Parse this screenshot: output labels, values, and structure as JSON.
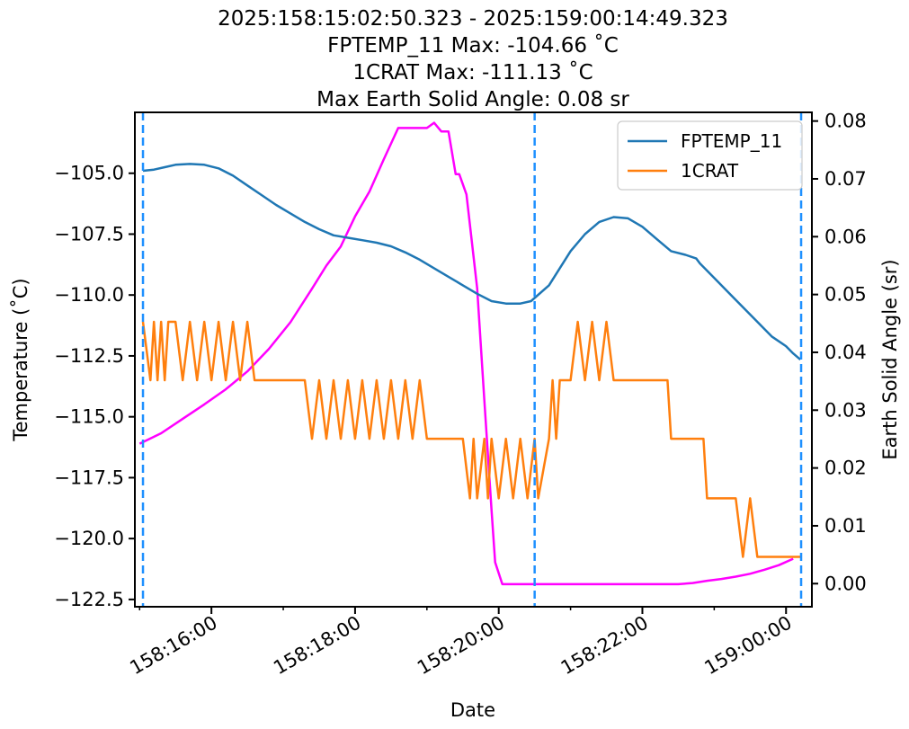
{
  "chart_data": {
    "type": "line",
    "title_lines": [
      "2025:158:15:02:50.323 - 2025:159:00:14:49.323",
      "FPTEMP_11 Max: -104.66 ˚C",
      "1CRAT Max: -111.13 ˚C",
      "Max Earth Solid Angle: 0.08 sr"
    ],
    "xlabel": "Date",
    "ylabel": "Temperature (˚C)",
    "ylabel_right": "Earth Solid Angle (sr)",
    "x_unit": "hours since 2025:158:15:00:00 (plot time)",
    "xlim": [
      -0.066,
      9.36
    ],
    "ylim": [
      -122.8,
      -102.5
    ],
    "ylim_right": [
      -0.004,
      0.0815
    ],
    "x_ticks": [
      {
        "x": 1,
        "label": "158:16:00"
      },
      {
        "x": 3,
        "label": "158:18:00"
      },
      {
        "x": 5,
        "label": "158:20:00"
      },
      {
        "x": 7,
        "label": "158:22:00"
      },
      {
        "x": 9,
        "label": "159:00:00"
      }
    ],
    "x_minor_ticks": [
      0,
      2,
      4,
      6,
      8
    ],
    "y_ticks": [
      -105.0,
      -107.5,
      -110.0,
      -112.5,
      -115.0,
      -117.5,
      -120.0,
      -122.5
    ],
    "y_tick_labels": [
      "−105.0",
      "−107.5",
      "−110.0",
      "−112.5",
      "−115.0",
      "−117.5",
      "−120.0",
      "−122.5"
    ],
    "y_right_ticks": [
      0.0,
      0.01,
      0.02,
      0.03,
      0.04,
      0.05,
      0.06,
      0.07,
      0.08
    ],
    "y_right_tick_labels": [
      "0.00",
      "0.01",
      "0.02",
      "0.03",
      "0.04",
      "0.05",
      "0.06",
      "0.07",
      "0.08"
    ],
    "vlines": [
      0.047,
      5.5,
      9.21
    ],
    "legend_position": "upper right",
    "colors": {
      "fptemp": "#1f77b4",
      "crat": "#ff7f0e",
      "earth": "#ff00ff",
      "vline": "#1e90ff"
    },
    "series": [
      {
        "name": "FPTEMP_11",
        "axis": "left",
        "x": [
          0.047,
          0.2,
          0.35,
          0.5,
          0.7,
          0.9,
          1.1,
          1.3,
          1.5,
          1.7,
          1.9,
          2.1,
          2.3,
          2.5,
          2.7,
          2.9,
          3.1,
          3.3,
          3.5,
          3.7,
          3.9,
          4.1,
          4.3,
          4.5,
          4.7,
          4.9,
          5.1,
          5.3,
          5.45,
          5.7,
          5.85,
          6.0,
          6.2,
          6.4,
          6.6,
          6.8,
          7.0,
          7.2,
          7.4,
          7.6,
          7.75,
          7.8,
          8.0,
          8.2,
          8.4,
          8.6,
          8.8,
          9.0,
          9.1,
          9.2
        ],
        "y": [
          -104.9,
          -104.85,
          -104.75,
          -104.65,
          -104.62,
          -104.65,
          -104.8,
          -105.1,
          -105.5,
          -105.9,
          -106.3,
          -106.65,
          -107.0,
          -107.3,
          -107.55,
          -107.65,
          -107.75,
          -107.85,
          -108.0,
          -108.25,
          -108.55,
          -108.9,
          -109.25,
          -109.6,
          -109.95,
          -110.25,
          -110.35,
          -110.35,
          -110.25,
          -109.6,
          -108.9,
          -108.2,
          -107.5,
          -107.0,
          -106.8,
          -106.85,
          -107.2,
          -107.7,
          -108.2,
          -108.35,
          -108.5,
          -108.7,
          -109.3,
          -109.9,
          -110.5,
          -111.1,
          -111.7,
          -112.1,
          -112.4,
          -112.65
        ]
      },
      {
        "name": "1CRAT",
        "axis": "left",
        "x": [
          0.047,
          0.15,
          0.2,
          0.25,
          0.3,
          0.35,
          0.4,
          0.5,
          0.6,
          0.7,
          0.8,
          0.9,
          1.0,
          1.1,
          1.2,
          1.3,
          1.4,
          1.5,
          1.6,
          1.7,
          1.9,
          2.1,
          2.3,
          2.4,
          2.5,
          2.6,
          2.7,
          2.8,
          2.9,
          3.0,
          3.1,
          3.2,
          3.3,
          3.4,
          3.5,
          3.6,
          3.7,
          3.8,
          3.9,
          4.0,
          4.5,
          4.6,
          4.65,
          4.7,
          4.8,
          4.85,
          4.9,
          5.0,
          5.1,
          5.2,
          5.3,
          5.4,
          5.5,
          5.55,
          5.7,
          5.75,
          5.8,
          5.85,
          6.0,
          6.1,
          6.2,
          6.3,
          6.4,
          6.5,
          6.6,
          6.8,
          7.0,
          7.2,
          7.35,
          7.4,
          7.5,
          7.7,
          7.85,
          7.9,
          8.0,
          8.2,
          8.3,
          8.4,
          8.5,
          8.6,
          8.8,
          9.0,
          9.2
        ],
        "y": [
          -111.1,
          -113.5,
          -111.1,
          -113.5,
          -111.1,
          -113.5,
          -111.1,
          -111.1,
          -113.5,
          -111.1,
          -113.5,
          -111.1,
          -113.5,
          -111.1,
          -113.5,
          -111.1,
          -113.5,
          -111.1,
          -113.5,
          -113.5,
          -113.5,
          -113.5,
          -113.5,
          -115.9,
          -113.5,
          -115.9,
          -113.5,
          -115.9,
          -113.5,
          -115.9,
          -113.5,
          -115.9,
          -113.5,
          -115.9,
          -113.5,
          -115.9,
          -113.5,
          -115.9,
          -113.5,
          -115.9,
          -115.9,
          -118.35,
          -115.9,
          -118.35,
          -115.9,
          -118.35,
          -115.9,
          -118.35,
          -115.9,
          -118.35,
          -115.9,
          -118.35,
          -115.9,
          -118.35,
          -115.9,
          -113.5,
          -115.9,
          -113.5,
          -113.5,
          -111.1,
          -113.5,
          -111.1,
          -113.5,
          -111.1,
          -113.5,
          -113.5,
          -113.5,
          -113.5,
          -113.5,
          -115.9,
          -115.9,
          -115.9,
          -115.9,
          -118.35,
          -118.35,
          -118.35,
          -118.35,
          -120.75,
          -118.35,
          -120.75,
          -120.75,
          -120.75,
          -120.75
        ]
      },
      {
        "name": "Earth Solid Angle",
        "axis": "right",
        "x": [
          0.0,
          0.3,
          0.6,
          0.9,
          1.2,
          1.5,
          1.8,
          2.1,
          2.4,
          2.6,
          2.8,
          3.0,
          3.2,
          3.4,
          3.6,
          3.8,
          4.0,
          4.1,
          4.2,
          4.3,
          4.4,
          4.45,
          4.55,
          4.7,
          4.8,
          4.9,
          4.95,
          5.05,
          5.15,
          5.25,
          5.4,
          5.6,
          6.0,
          6.5,
          7.0,
          7.5,
          7.7,
          7.9,
          8.1,
          8.3,
          8.5,
          8.7,
          8.9,
          9.1
        ],
        "y": [
          0.0242,
          0.026,
          0.0285,
          0.031,
          0.0336,
          0.0367,
          0.0406,
          0.0452,
          0.051,
          0.055,
          0.0583,
          0.0635,
          0.0678,
          0.0734,
          0.0788,
          0.0788,
          0.0788,
          0.0797,
          0.0782,
          0.0782,
          0.0708,
          0.0708,
          0.0673,
          0.0511,
          0.0317,
          0.0127,
          0.0037,
          -0.0001,
          -0.0001,
          -0.0001,
          -0.0001,
          -0.0001,
          -0.0001,
          -0.0001,
          -0.0001,
          -0.0001,
          0.0001,
          0.0005,
          0.0008,
          0.0012,
          0.0017,
          0.0024,
          0.0032,
          0.0043
        ]
      }
    ]
  }
}
